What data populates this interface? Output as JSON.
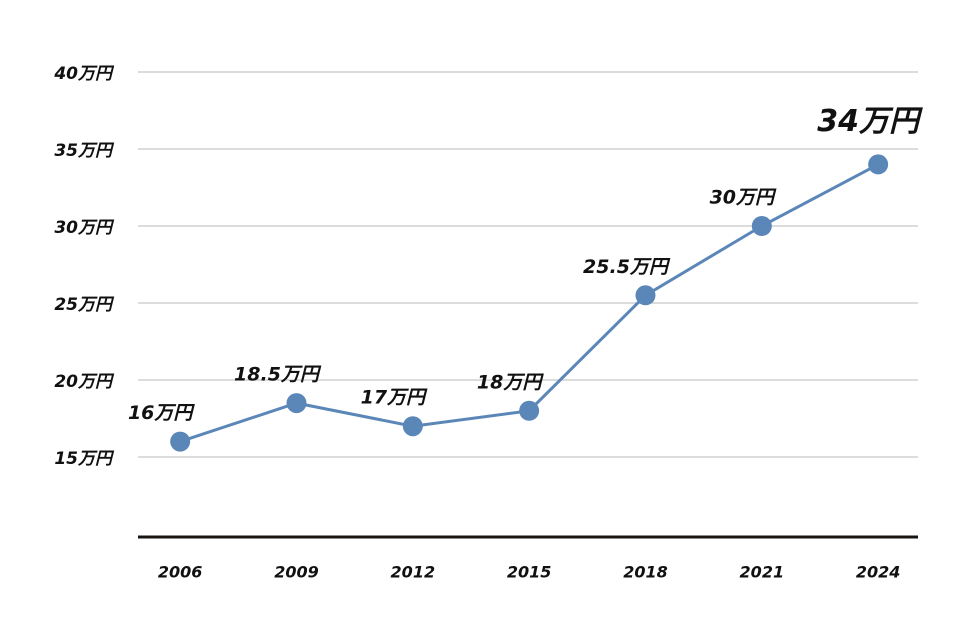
{
  "chart_data": {
    "type": "line",
    "categories": [
      "2006",
      "2009",
      "2012",
      "2015",
      "2018",
      "2021",
      "2024"
    ],
    "series": [
      {
        "color": "#5b87b8",
        "values": [
          16,
          18.5,
          17,
          18,
          25.5,
          30,
          34
        ],
        "value_labels": [
          "16万円",
          "18.5万円",
          "17万円",
          "18万円",
          "25.5万円",
          "30万円",
          "34万円"
        ]
      }
    ],
    "ylim": [
      10,
      40
    ],
    "yticks": [
      {
        "value": 15,
        "label": "15万円"
      },
      {
        "value": 20,
        "label": "20万円"
      },
      {
        "value": 25,
        "label": "25万円"
      },
      {
        "value": 30,
        "label": "30万円"
      },
      {
        "value": 35,
        "label": "35万円"
      },
      {
        "value": 40,
        "label": "40万円"
      }
    ],
    "grid": true
  }
}
